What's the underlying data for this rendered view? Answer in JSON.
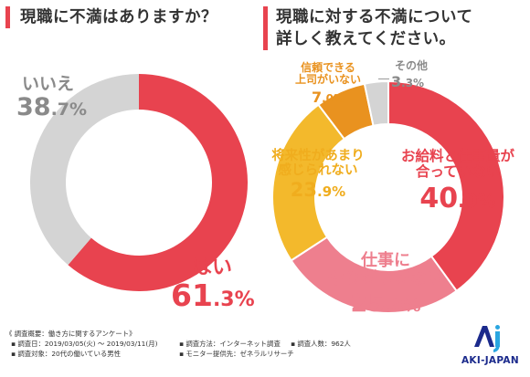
{
  "left": {
    "question": "現職に不満はありますか？",
    "chart_data": {
      "type": "pie",
      "title": "現職に不満はありますか？",
      "labels": [
        "はい",
        "いいえ"
      ],
      "values": [
        61.3,
        38.7
      ],
      "value_labels": [
        "61.3%",
        "38.7%"
      ],
      "colors": [
        "#e8434f",
        "#d4d4d4"
      ]
    },
    "label_yes": "はい",
    "value_yes_int": "61",
    "value_yes_dec": ".3%",
    "label_no": "いいえ",
    "value_no_int": "38",
    "value_no_dec": ".7%"
  },
  "right": {
    "question_line1": "現職に対する不満について",
    "question_line2": "詳しく教えてください。",
    "chart_data": {
      "type": "pie",
      "title": "現職に対する不満について詳しく教えてください。",
      "labels": [
        "お給料と仕事量が合っていない",
        "仕事にやりがいがない",
        "将来性があまり感じられない",
        "信頼できる上司がいない",
        "その他"
      ],
      "values": [
        40.0,
        25.8,
        23.9,
        7.0,
        3.3
      ],
      "value_labels": [
        "40.0%",
        "25.8%",
        "23.9%",
        "7.0%",
        "3.3%"
      ],
      "colors": [
        "#e8434f",
        "#ee7f8e",
        "#f3b92c",
        "#e9921f",
        "#d4d4d4"
      ]
    },
    "salary_l1": "お給料と仕事量が",
    "salary_l2": "合っていない",
    "salary_int": "40",
    "salary_dec": ".0%",
    "work_l1": "仕事に",
    "work_l2": "やりがいがない",
    "work_int": "25",
    "work_dec": ".8%",
    "future_l1": "将来性があまり",
    "future_l2": "感じられない",
    "future_int": "23",
    "future_dec": ".9%",
    "boss_l1": "信頼できる",
    "boss_l2": "上司がいない",
    "boss_int": "7",
    "boss_dec": ".0%",
    "other_l1": "その他",
    "other_int": "3",
    "other_dec": ".3%"
  },
  "footer": {
    "survey_title": "《 調査概要：働き方に関するアンケート》",
    "date": "調査日：2019/03/05(火) 〜 2019/03/11(月)",
    "method": "調査方法：インターネット調査",
    "count": "調査人数：962人",
    "target": "調査対象：20代の働いている男性",
    "provider": "モニター提供先：ゼネラルリサーチ"
  },
  "logo": {
    "text": "AKI-JAPAN",
    "colors": [
      "#1b2a8c",
      "#2aa6e0"
    ]
  }
}
